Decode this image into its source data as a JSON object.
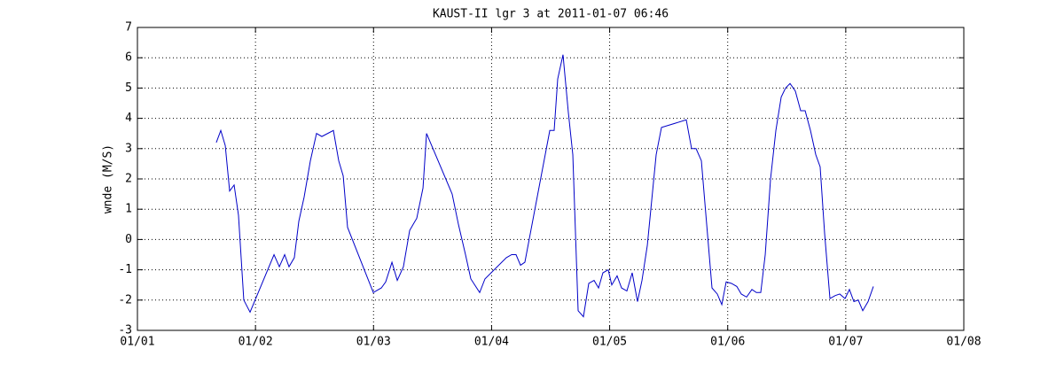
{
  "chart_data": {
    "type": "line",
    "title": "KAUST-II lgr 3 at 2011-01-07 06:46",
    "y_label": "wnde (M/S)",
    "color": "#0000c8",
    "grid": true,
    "xlim": [
      0,
      7
    ],
    "xticks": [
      {
        "value": 0,
        "label": "01/01"
      },
      {
        "value": 1,
        "label": "01/02"
      },
      {
        "value": 2,
        "label": "01/03"
      },
      {
        "value": 3,
        "label": "01/04"
      },
      {
        "value": 4,
        "label": "01/05"
      },
      {
        "value": 5,
        "label": "01/06"
      },
      {
        "value": 6,
        "label": "01/07"
      },
      {
        "value": 7,
        "label": "01/08"
      }
    ],
    "ylim": [
      -3,
      7
    ],
    "yticks": [
      -3,
      -2,
      -1,
      0,
      1,
      2,
      3,
      4,
      5,
      6,
      7
    ],
    "x": [
      0.668,
      0.706,
      0.744,
      0.781,
      0.819,
      0.856,
      0.901,
      0.954,
      1.157,
      1.202,
      1.247,
      1.284,
      1.329,
      1.367,
      1.412,
      1.465,
      1.517,
      1.562,
      1.66,
      1.705,
      1.743,
      1.78,
      1.998,
      2.066,
      2.103,
      2.156,
      2.201,
      2.253,
      2.306,
      2.336,
      2.366,
      2.419,
      2.449,
      2.666,
      2.719,
      2.779,
      2.824,
      2.899,
      2.944,
      3.125,
      3.17,
      3.207,
      3.245,
      3.282,
      3.493,
      3.53,
      3.56,
      3.605,
      3.65,
      3.688,
      3.733,
      3.778,
      3.823,
      3.868,
      3.906,
      3.943,
      3.988,
      4.018,
      4.063,
      4.101,
      4.146,
      4.191,
      4.236,
      4.274,
      4.319,
      4.394,
      4.439,
      4.649,
      4.694,
      4.732,
      4.777,
      4.822,
      4.867,
      4.912,
      4.95,
      4.987,
      5.032,
      5.077,
      5.115,
      5.16,
      5.205,
      5.243,
      5.28,
      5.318,
      5.363,
      5.408,
      5.453,
      5.49,
      5.528,
      5.573,
      5.618,
      5.656,
      5.701,
      5.746,
      5.783,
      5.821,
      5.866,
      5.911,
      5.949,
      5.994,
      6.031,
      6.069,
      6.106,
      6.144,
      6.189,
      6.234
    ],
    "values": [
      3.2,
      3.6,
      3.1,
      1.6,
      1.8,
      0.8,
      -2.0,
      -2.4,
      -0.5,
      -0.9,
      -0.5,
      -0.9,
      -0.6,
      0.6,
      1.4,
      2.6,
      3.5,
      3.4,
      3.6,
      2.6,
      2.1,
      0.4,
      -1.75,
      -1.6,
      -1.4,
      -0.75,
      -1.35,
      -0.9,
      0.3,
      0.5,
      0.7,
      1.7,
      3.5,
      1.5,
      0.5,
      -0.5,
      -1.3,
      -1.75,
      -1.3,
      -0.6,
      -0.5,
      -0.5,
      -0.85,
      -0.75,
      3.6,
      3.6,
      5.3,
      6.1,
      4.2,
      2.8,
      -2.35,
      -2.55,
      -1.45,
      -1.35,
      -1.6,
      -1.1,
      -1.0,
      -1.5,
      -1.2,
      -1.6,
      -1.7,
      -1.1,
      -2.05,
      -1.35,
      -0.2,
      2.8,
      3.7,
      3.95,
      3.0,
      3.0,
      2.6,
      0.5,
      -1.6,
      -1.8,
      -2.15,
      -1.4,
      -1.45,
      -1.55,
      -1.8,
      -1.9,
      -1.65,
      -1.75,
      -1.75,
      -0.5,
      2.0,
      3.6,
      4.7,
      5.0,
      5.15,
      4.9,
      4.25,
      4.25,
      3.6,
      2.8,
      2.4,
      0.2,
      -1.95,
      -1.85,
      -1.8,
      -1.95,
      -1.65,
      -2.05,
      -2.0,
      -2.35,
      -2.05,
      -1.55
    ]
  }
}
